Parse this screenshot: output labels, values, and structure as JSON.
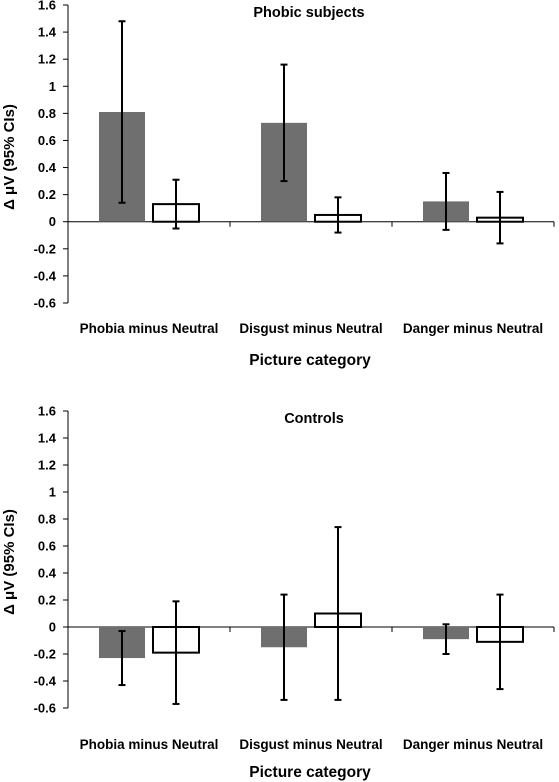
{
  "chart_data": [
    {
      "type": "bar",
      "title": "Phobic subjects",
      "xlabel": "Picture category",
      "ylabel": "Δ μV (95% CIs)",
      "ylim": [
        -0.6,
        1.6
      ],
      "yticks": [
        "-0.6",
        "-0.4",
        "-0.2",
        "0",
        "0.2",
        "0.4",
        "0.6",
        "0.8",
        "1",
        "1.2",
        "1.4",
        "1.6"
      ],
      "categories": [
        "Phobia minus Neutral",
        "Disgust minus Neutral",
        "Danger minus Neutral"
      ],
      "colors": {
        "filled": "#6f6f6f",
        "open": "#ffffff"
      },
      "series": [
        {
          "values": [
            0.81,
            0.73,
            0.15
          ],
          "ci_low": [
            0.14,
            0.3,
            -0.06
          ],
          "ci_high": [
            1.48,
            1.16,
            0.36
          ]
        },
        {
          "values": [
            0.13,
            0.05,
            0.03
          ],
          "ci_low": [
            -0.05,
            -0.08,
            -0.16
          ],
          "ci_high": [
            0.31,
            0.18,
            0.22
          ]
        }
      ],
      "grid": false
    },
    {
      "type": "bar",
      "title": "Controls",
      "xlabel": "Picture category",
      "ylabel": "Δ μV (95% CIs)",
      "ylim": [
        -0.6,
        1.6
      ],
      "yticks": [
        "-0.6",
        "-0.4",
        "-0.2",
        "0",
        "0.2",
        "0.4",
        "0.6",
        "0.8",
        "1",
        "1.2",
        "1.4",
        "1.6"
      ],
      "categories": [
        "Phobia minus Neutral",
        "Disgust minus Neutral",
        "Danger minus Neutral"
      ],
      "colors": {
        "filled": "#6f6f6f",
        "open": "#ffffff"
      },
      "series": [
        {
          "values": [
            -0.23,
            -0.15,
            -0.09
          ],
          "ci_low": [
            -0.43,
            -0.54,
            -0.2
          ],
          "ci_high": [
            -0.03,
            0.24,
            0.02
          ]
        },
        {
          "values": [
            -0.19,
            0.1,
            -0.11
          ],
          "ci_low": [
            -0.57,
            -0.54,
            -0.46
          ],
          "ci_high": [
            0.19,
            0.74,
            0.24
          ]
        }
      ],
      "grid": false
    }
  ]
}
